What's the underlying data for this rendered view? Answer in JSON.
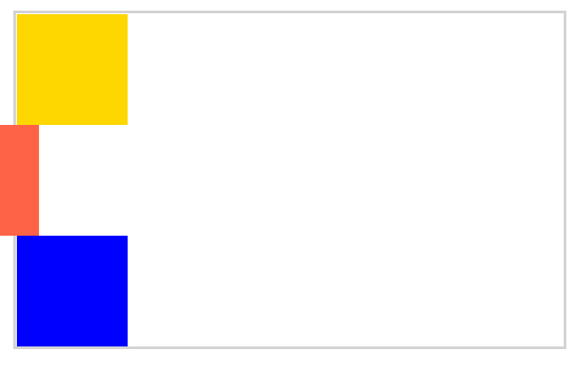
{
  "colors": {
    "frame_border": "#d3d3d3",
    "background": "#ffffff",
    "block_top": "#ffd700",
    "block_middle": "#ff6347",
    "block_bottom": "#0000ff"
  }
}
